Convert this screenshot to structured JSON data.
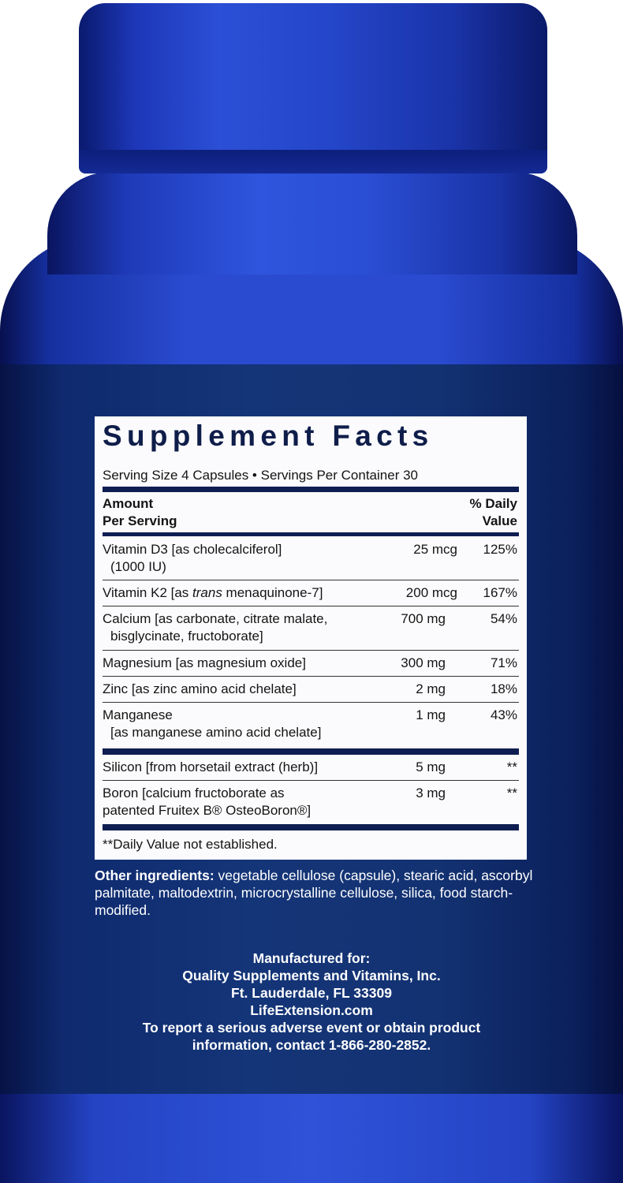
{
  "colors": {
    "bottle": "#2a4bd0",
    "label_band": "#143578",
    "panel": "#fbfbfd",
    "panel_bar": "#0f1e52"
  },
  "facts": {
    "title": "Supplement Facts",
    "serving": "Serving Size 4 Capsules • Servings Per Container 30",
    "header_amount": [
      "Amount",
      "Per Serving"
    ],
    "header_dv": [
      "% Daily",
      "Value"
    ],
    "rows": [
      {
        "name": "Vitamin D3 [as cholecalciferol]",
        "name2": "(1000 IU)",
        "amount": "25 mcg",
        "dv": "125%"
      },
      {
        "name_pre": "Vitamin K2 [as ",
        "name_italic": "trans",
        "name_post": " menaquinone-7]",
        "amount": "200 mcg",
        "dv": "167%"
      },
      {
        "name": "Calcium [as carbonate, citrate malate,",
        "name2": "bisglycinate, fructoborate]",
        "amount": "700 mg",
        "dv": "54%"
      },
      {
        "name": "Magnesium [as magnesium oxide]",
        "amount": "300 mg",
        "dv": "71%"
      },
      {
        "name": "Zinc [as zinc amino acid chelate]",
        "amount": "2 mg",
        "dv": "18%"
      },
      {
        "name": "Manganese",
        "name2": "[as manganese amino acid chelate]",
        "amount": "1 mg",
        "dv": "43%"
      },
      {
        "name": "Silicon [from horsetail extract (herb)]",
        "amount": "5 mg",
        "dv": "**"
      },
      {
        "name": "Boron [calcium fructoborate as",
        "name2": "patented Fruitex B® OsteoBoron®]",
        "amount": "3 mg",
        "dv": "**"
      }
    ],
    "footnote": "**Daily Value not established."
  },
  "other": {
    "label": "Other ingredients:",
    "text": " vegetable cellulose (capsule), stearic acid, ascorbyl palmitate, maltodextrin, microcrystalline cellulose, silica, food starch-modified."
  },
  "manufacturer": {
    "lines": [
      "Manufactured for:",
      "Quality Supplements and Vitamins, Inc.",
      "Ft. Lauderdale, FL 33309",
      "LifeExtension.com",
      "To report a serious adverse event or obtain product",
      "information, contact 1-866-280-2852."
    ]
  }
}
